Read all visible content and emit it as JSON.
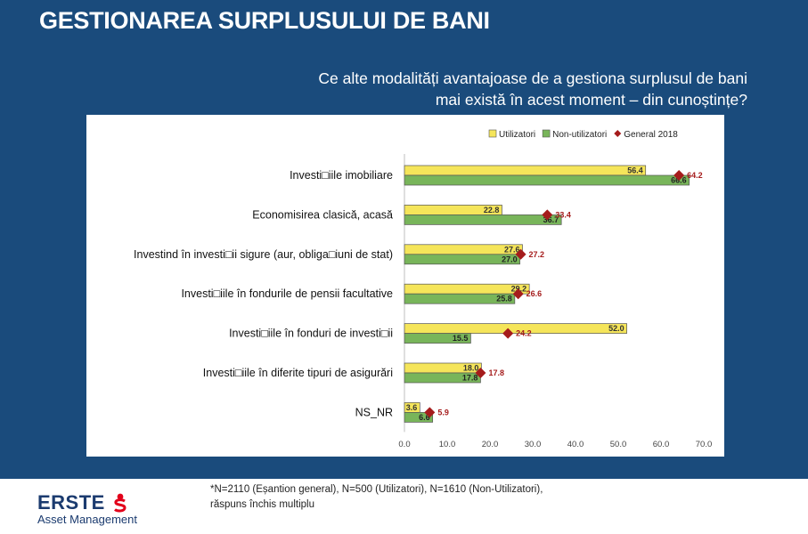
{
  "slide": {
    "title": "GESTIONAREA SURPLUSULUI DE BANI",
    "question_line1": "Ce alte modalități avantajoase de a gestiona surplusul de bani",
    "question_line2": "mai există în acest moment – din cunoștințe?"
  },
  "footer": {
    "note_line1": "*N=2110 (Eșantion general), N=500 (Utilizatori), N=1610 (Non-Utilizatori),",
    "note_line2": "răspuns închis multiplu",
    "logo_brand": "ERSTE",
    "logo_sub": "Asset Management"
  },
  "chart_data": {
    "type": "bar",
    "orientation": "horizontal",
    "categories": [
      "Investi□iile imobiliare",
      "Economisirea clasică, acasă",
      "Investind în investi□ii sigure (aur, obliga□iuni de stat)",
      "Investi□iile în fondurile de pensii facultative",
      "Investi□iile în fonduri  de investi□ii",
      "Investi□iile în diferite tipuri de asigurări",
      "NS_NR"
    ],
    "series": [
      {
        "name": "Utilizatori",
        "color": "#f5e55a",
        "values": [
          56.4,
          22.8,
          27.6,
          29.2,
          52.0,
          18.0,
          3.6
        ]
      },
      {
        "name": "Non-utilizatori",
        "color": "#78b55a",
        "values": [
          66.6,
          36.7,
          27.0,
          25.8,
          15.5,
          17.8,
          6.6
        ]
      },
      {
        "name": "General 2018",
        "marker": "diamond",
        "color": "#a51c1c",
        "values": [
          64.2,
          33.4,
          27.2,
          26.6,
          24.2,
          17.8,
          5.9
        ]
      }
    ],
    "xlim": [
      0,
      70
    ],
    "xticks": [
      "0.0",
      "10.0",
      "20.0",
      "30.0",
      "40.0",
      "50.0",
      "60.0",
      "70.0"
    ],
    "legend_position": "top-right",
    "grid": false
  }
}
